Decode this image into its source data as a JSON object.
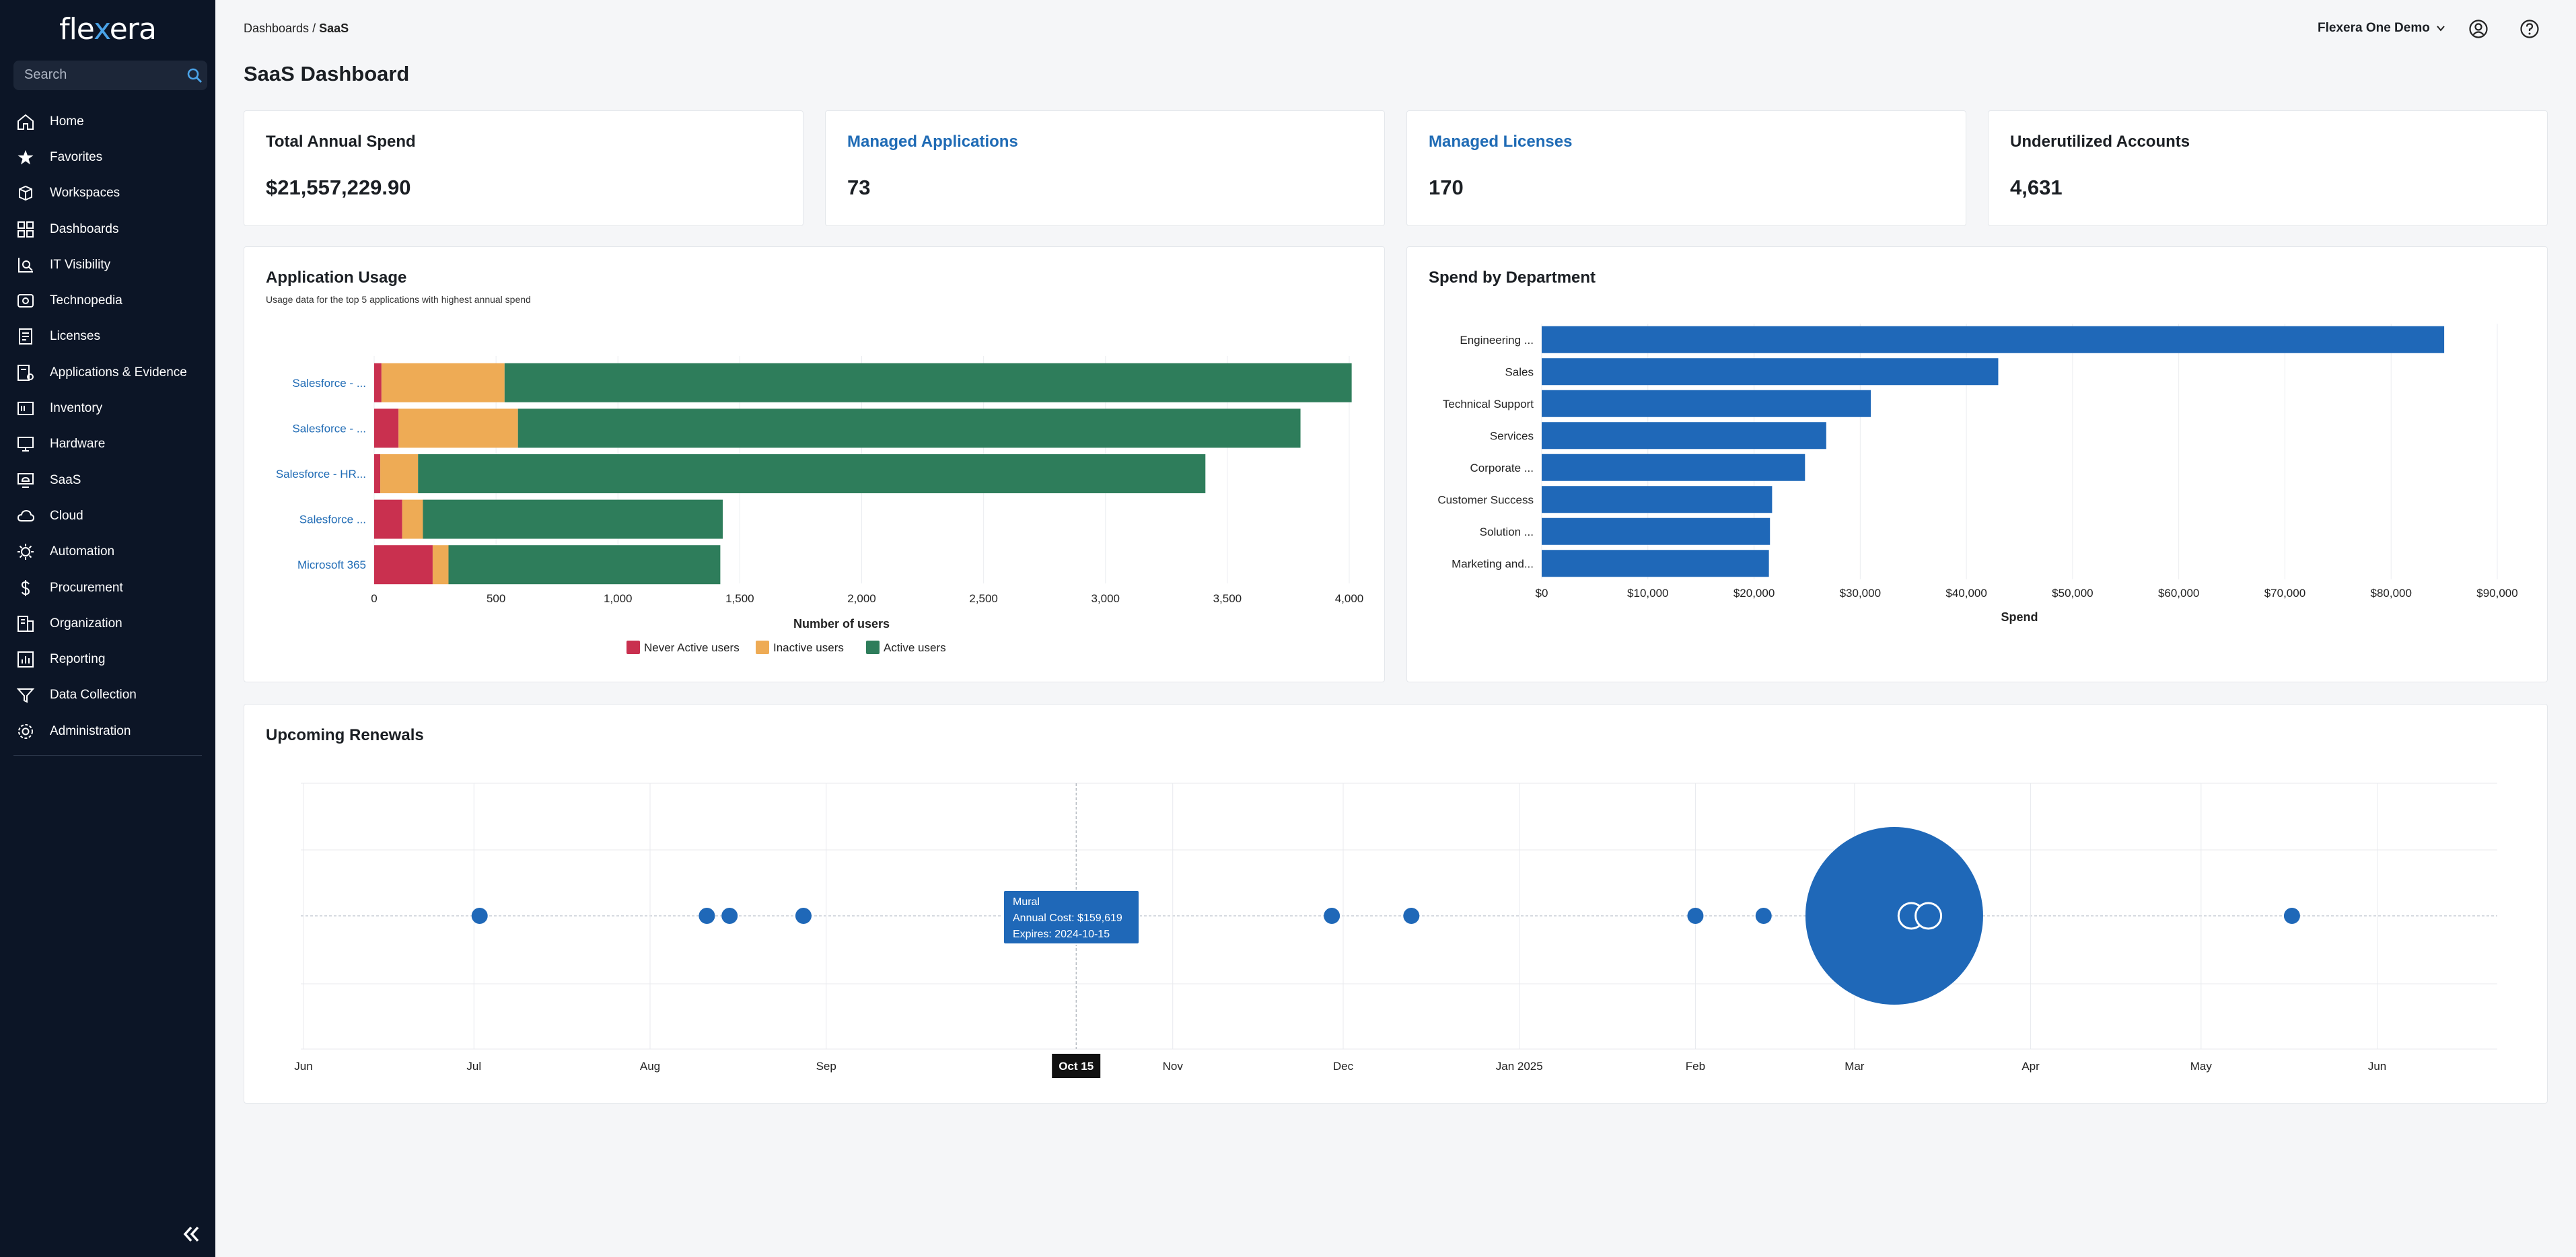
{
  "app": {
    "logo_prefix": "fle",
    "logo_x": "x",
    "logo_suffix": "era"
  },
  "search": {
    "placeholder": "Search"
  },
  "nav": [
    {
      "label": "Home",
      "icon": "home-icon"
    },
    {
      "label": "Favorites",
      "icon": "star-icon"
    },
    {
      "label": "Workspaces",
      "icon": "workspaces-icon"
    },
    {
      "label": "Dashboards",
      "icon": "dashboards-icon"
    },
    {
      "label": "IT Visibility",
      "icon": "it-visibility-icon"
    },
    {
      "label": "Technopedia",
      "icon": "technopedia-icon"
    },
    {
      "label": "Licenses",
      "icon": "licenses-icon"
    },
    {
      "label": "Applications & Evidence",
      "icon": "applications-icon"
    },
    {
      "label": "Inventory",
      "icon": "inventory-icon"
    },
    {
      "label": "Hardware",
      "icon": "hardware-icon"
    },
    {
      "label": "SaaS",
      "icon": "saas-icon"
    },
    {
      "label": "Cloud",
      "icon": "cloud-icon"
    },
    {
      "label": "Automation",
      "icon": "automation-icon"
    },
    {
      "label": "Procurement",
      "icon": "dollar-icon"
    },
    {
      "label": "Organization",
      "icon": "organization-icon"
    },
    {
      "label": "Reporting",
      "icon": "reporting-icon"
    },
    {
      "label": "Data Collection",
      "icon": "data-collection-icon"
    },
    {
      "label": "Administration",
      "icon": "gear-icon"
    }
  ],
  "header": {
    "breadcrumb_parent": "Dashboards",
    "breadcrumb_sep": " / ",
    "breadcrumb_current": "SaaS",
    "org_name": "Flexera One Demo",
    "title": "SaaS Dashboard"
  },
  "kpis": [
    {
      "title": "Total Annual Spend",
      "value": "$21,557,229.90",
      "link": false
    },
    {
      "title": "Managed Applications",
      "value": "73",
      "link": true
    },
    {
      "title": "Managed Licenses",
      "value": "170",
      "link": true
    },
    {
      "title": "Underutilized Accounts",
      "value": "4,631",
      "link": false
    }
  ],
  "usage": {
    "title": "Application Usage",
    "subtitle": "Usage data for the top 5 applications with highest annual spend"
  },
  "spend": {
    "title": "Spend by Department"
  },
  "renewals": {
    "title": "Upcoming Renewals"
  },
  "colors": {
    "never": "#c9304f",
    "inactive": "#eeab55",
    "active": "#2e7d5b",
    "blue": "#1f68b8",
    "link": "#1f6bb5"
  },
  "chart_data": [
    {
      "type": "bar",
      "orientation": "horizontal",
      "stacked": true,
      "categories": [
        "Salesforce - ...",
        "Salesforce - ...",
        "Salesforce - HR...",
        "Salesforce ...",
        "Microsoft 365"
      ],
      "series": [
        {
          "name": "Never Active users",
          "values": [
            30,
            100,
            25,
            115,
            240
          ]
        },
        {
          "name": "Inactive users",
          "values": [
            505,
            490,
            155,
            85,
            65
          ]
        },
        {
          "name": "Active users",
          "values": [
            3475,
            3210,
            3230,
            1230,
            1115
          ]
        }
      ],
      "xlabel": "Number of users",
      "xlim": [
        0,
        4000
      ],
      "xticks": [
        0,
        500,
        1000,
        1500,
        2000,
        2500,
        3000,
        3500,
        4000
      ],
      "xtick_labels": [
        "0",
        "500",
        "1,000",
        "1,500",
        "2,000",
        "2,500",
        "3,000",
        "3,500",
        "4,000"
      ],
      "legend": "bottom"
    },
    {
      "type": "bar",
      "orientation": "horizontal",
      "categories": [
        "Engineering ...",
        "Sales",
        "Technical Support",
        "Services",
        "Corporate ...",
        "Customer Success",
        "Solution ...",
        "Marketing and..."
      ],
      "values": [
        85000,
        43000,
        31000,
        26800,
        24800,
        21700,
        21500,
        21400
      ],
      "xlabel": "Spend",
      "xlim": [
        0,
        90000
      ],
      "xticks": [
        0,
        10000,
        20000,
        30000,
        40000,
        50000,
        60000,
        70000,
        80000,
        90000
      ],
      "xtick_labels": [
        "$0",
        "$10,000",
        "$20,000",
        "$30,000",
        "$40,000",
        "$50,000",
        "$60,000",
        "$70,000",
        "$80,000",
        "$90,000"
      ]
    },
    {
      "type": "scatter",
      "subtype": "timeline-bubble",
      "xtick_labels": [
        "Jun",
        "Jul",
        "Aug",
        "Sep",
        "Oct 15",
        "Nov",
        "Dec",
        "Jan 2025",
        "Feb",
        "Mar",
        "Apr",
        "May",
        "Jun"
      ],
      "x_dates": [
        "2024-07-02",
        "2024-08-11",
        "2024-08-15",
        "2024-08-28",
        "2024-10-15",
        "2024-11-29",
        "2024-12-13",
        "2025-02-01",
        "2025-02-13",
        "2025-03-08",
        "2025-03-11",
        "2025-03-14",
        "2025-05-17"
      ],
      "sizes": [
        1,
        1,
        1,
        1,
        1,
        1,
        1,
        1,
        1,
        16,
        1,
        1,
        1
      ],
      "tooltip": {
        "name": "Mural",
        "cost": "Annual Cost: $159,619",
        "expires": "Expires: 2024-10-15"
      },
      "highlight_label": "Oct 15"
    }
  ]
}
